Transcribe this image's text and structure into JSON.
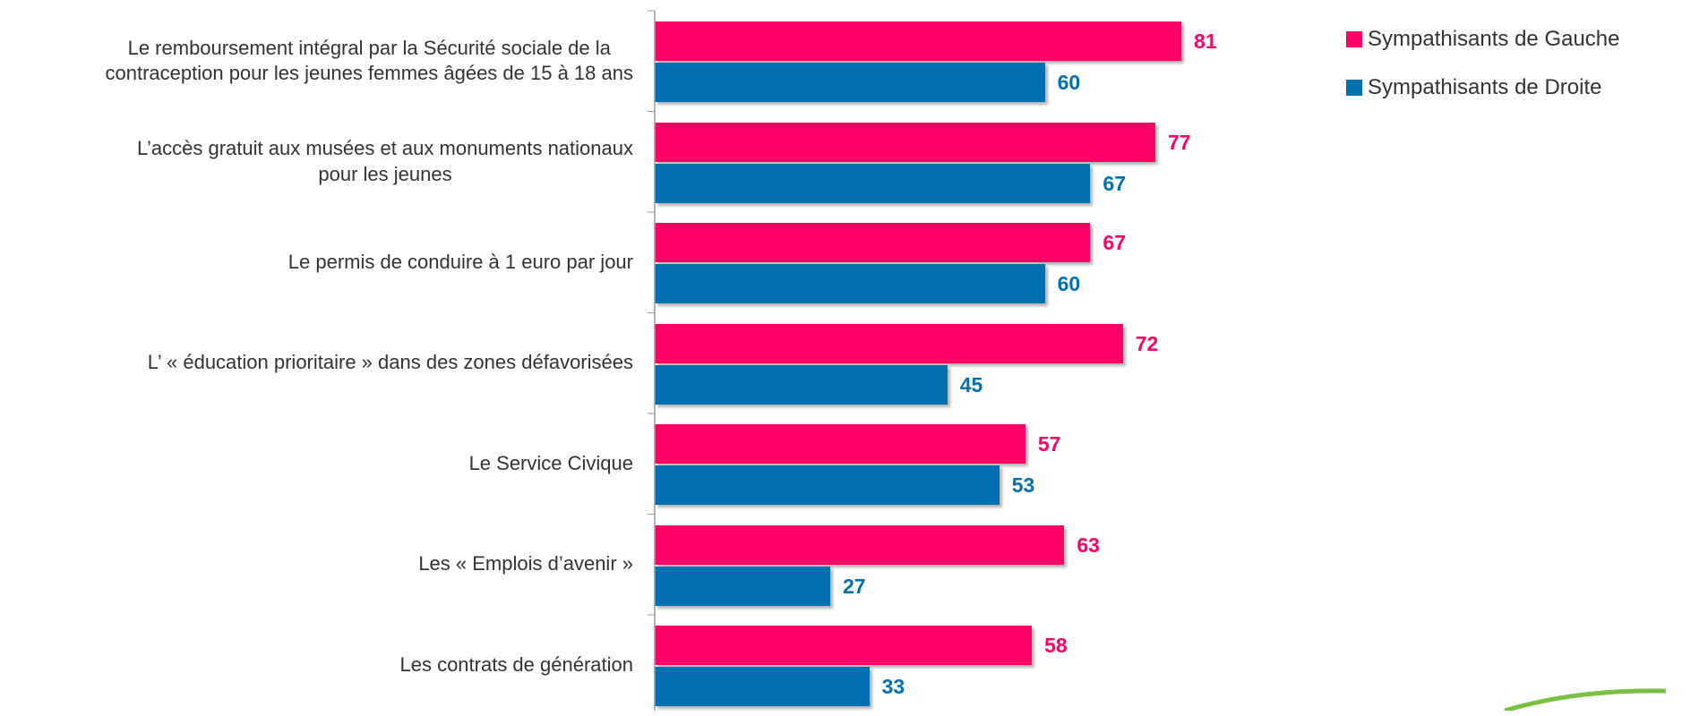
{
  "chart_data": {
    "type": "bar",
    "orientation": "horizontal",
    "categories": [
      "Le remboursement intégral par la Sécurité sociale de la\ncontraception pour les jeunes femmes âgées de 15 à 18 ans",
      "L’accès gratuit aux musées et aux monuments nationaux\npour les jeunes",
      "Le permis de conduire à 1 euro par jour",
      "L’ « éducation prioritaire » dans des zones défavorisées",
      "Le Service Civique",
      "Les « Emplois d’avenir »",
      "Les contrats de génération"
    ],
    "series": [
      {
        "name": "Sympathisants de Gauche",
        "color": "#ff0066",
        "values": [
          81,
          77,
          67,
          72,
          57,
          63,
          58
        ]
      },
      {
        "name": "Sympathisants de Droite",
        "color": "#0070b0",
        "values": [
          60,
          67,
          60,
          45,
          53,
          27,
          33
        ]
      }
    ],
    "legend": "top-right"
  }
}
